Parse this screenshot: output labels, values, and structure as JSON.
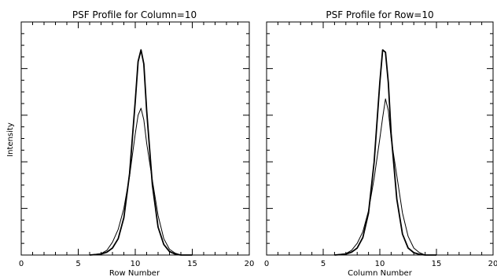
{
  "chart_data": [
    {
      "type": "line",
      "title": "PSF Profile for Column=10",
      "xlabel": "Row Number",
      "ylabel": "Intensity",
      "xlim": [
        0,
        20
      ],
      "ylim": [
        0,
        1.0
      ],
      "x_ticks": [
        0,
        5,
        10,
        15,
        20
      ],
      "y_tick_labels_shown": false,
      "grid": false,
      "series": [
        {
          "x": [
            6,
            7,
            7.5,
            8,
            8.5,
            9,
            9.5,
            10,
            10.25,
            10.5,
            10.75,
            11,
            11.5,
            12,
            12.5,
            13,
            13.5,
            14,
            15
          ],
          "y": [
            0.0,
            0.004,
            0.012,
            0.03,
            0.07,
            0.16,
            0.35,
            0.66,
            0.83,
            0.88,
            0.82,
            0.62,
            0.3,
            0.12,
            0.045,
            0.015,
            0.004,
            0.0,
            0.0
          ]
        },
        {
          "x": [
            6,
            7,
            7.5,
            8,
            8.5,
            9,
            9.5,
            10,
            10.25,
            10.5,
            10.75,
            11,
            11.5,
            12,
            12.5,
            13,
            13.5,
            14,
            15
          ],
          "y": [
            0.0,
            0.006,
            0.02,
            0.055,
            0.11,
            0.2,
            0.34,
            0.52,
            0.6,
            0.63,
            0.58,
            0.48,
            0.32,
            0.17,
            0.07,
            0.025,
            0.008,
            0.0,
            0.0
          ]
        }
      ]
    },
    {
      "type": "line",
      "title": "PSF Profile for Row=10",
      "xlabel": "Column Number",
      "ylabel": "",
      "xlim": [
        0,
        20
      ],
      "ylim": [
        0,
        1.0
      ],
      "x_ticks": [
        0,
        5,
        10,
        15,
        20
      ],
      "y_tick_labels_shown": false,
      "grid": false,
      "series": [
        {
          "x": [
            6,
            7,
            7.5,
            8,
            8.5,
            9,
            9.5,
            10,
            10.25,
            10.5,
            10.75,
            11,
            11.5,
            12,
            12.5,
            13,
            13.5,
            14,
            15
          ],
          "y": [
            0.0,
            0.004,
            0.012,
            0.03,
            0.075,
            0.18,
            0.4,
            0.74,
            0.88,
            0.87,
            0.74,
            0.52,
            0.24,
            0.09,
            0.03,
            0.01,
            0.003,
            0.0,
            0.0
          ]
        },
        {
          "x": [
            6,
            7,
            7.5,
            8,
            8.5,
            9,
            9.5,
            10,
            10.25,
            10.5,
            10.75,
            11,
            11.5,
            12,
            12.5,
            13,
            13.5,
            14,
            15
          ],
          "y": [
            0.0,
            0.006,
            0.02,
            0.05,
            0.1,
            0.19,
            0.33,
            0.5,
            0.59,
            0.67,
            0.62,
            0.5,
            0.34,
            0.18,
            0.08,
            0.03,
            0.01,
            0.0,
            0.0
          ]
        }
      ]
    }
  ]
}
